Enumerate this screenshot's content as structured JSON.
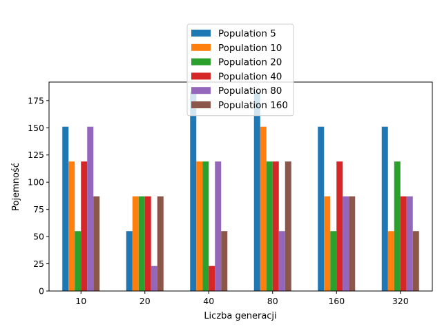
{
  "chart_data": {
    "type": "bar",
    "categories": [
      "10",
      "20",
      "40",
      "80",
      "160",
      "320"
    ],
    "series": [
      {
        "name": "Population 5",
        "color": "#1f77b4",
        "values": [
          151,
          55,
          183,
          183,
          151,
          151
        ]
      },
      {
        "name": "Population 10",
        "color": "#ff7f0e",
        "values": [
          119,
          87,
          119,
          151,
          87,
          55
        ]
      },
      {
        "name": "Population 20",
        "color": "#2ca02c",
        "values": [
          55,
          87,
          119,
          119,
          55,
          119
        ]
      },
      {
        "name": "Population 40",
        "color": "#d62728",
        "values": [
          119,
          87,
          23,
          119,
          119,
          87
        ]
      },
      {
        "name": "Population 80",
        "color": "#9467bd",
        "values": [
          151,
          23,
          119,
          55,
          87,
          87
        ]
      },
      {
        "name": "Population 160",
        "color": "#8c564b",
        "values": [
          87,
          87,
          55,
          119,
          87,
          55
        ]
      }
    ],
    "xlabel": "Liczba generacji",
    "ylabel": "Pojemność",
    "ylim": [
      0,
      192
    ],
    "yticks": [
      0,
      25,
      50,
      75,
      100,
      125,
      150,
      175
    ],
    "grid": false,
    "legend_position": "top-center"
  }
}
